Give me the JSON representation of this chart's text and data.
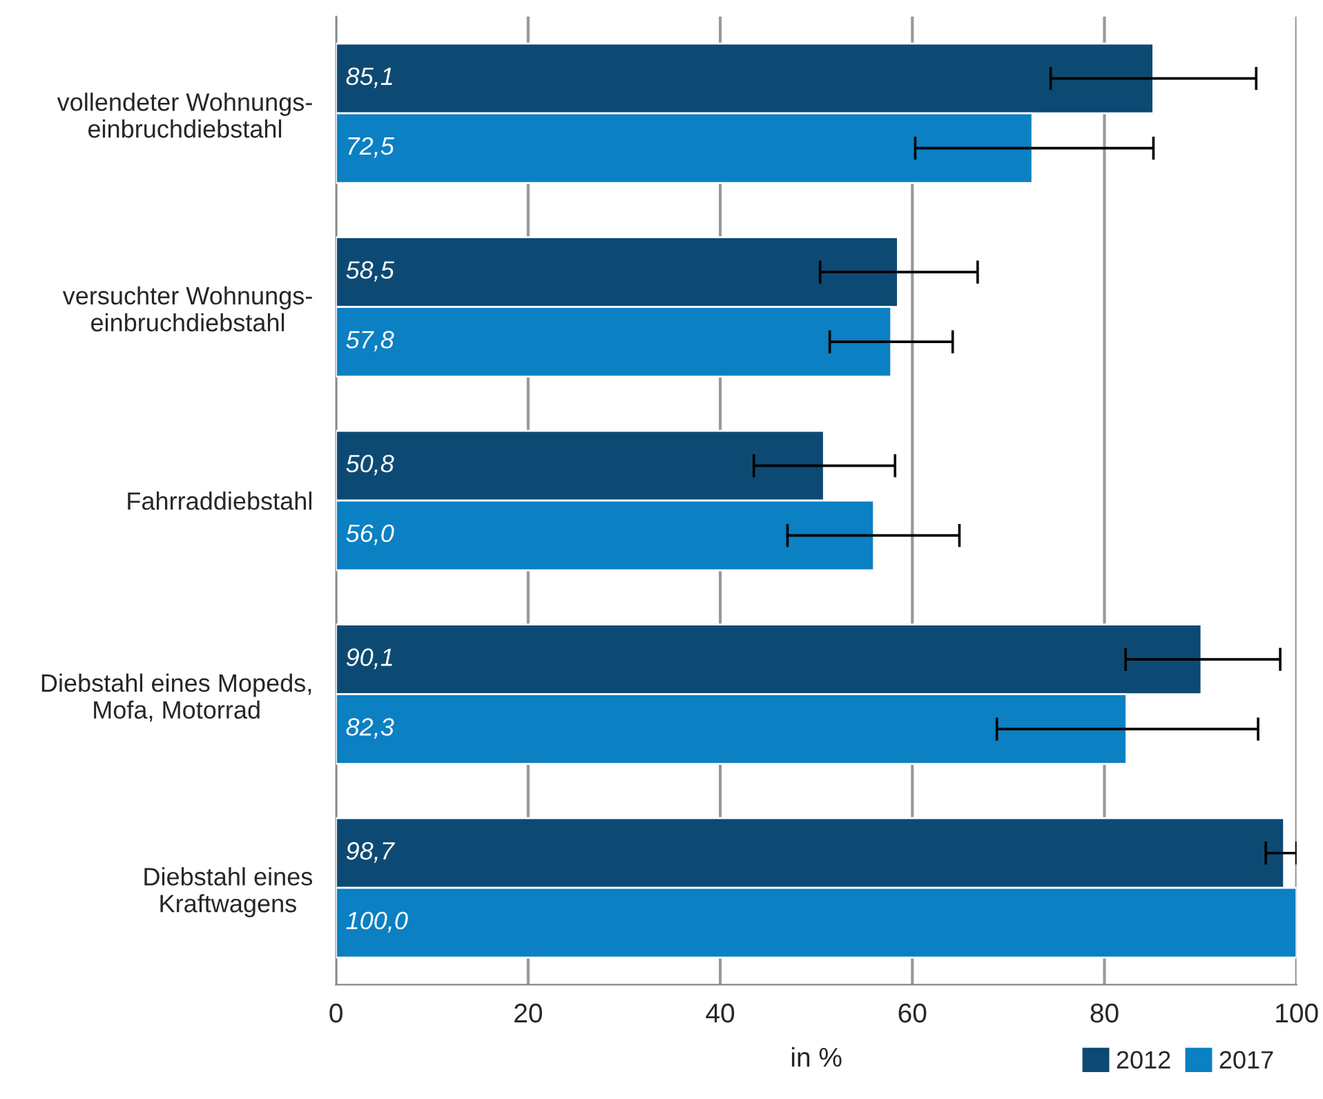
{
  "chart_data": {
    "type": "bar",
    "orientation": "horizontal",
    "categories": [
      "vollendeter Wohnungs-\neinbruchdiebstahl",
      "versuchter Wohnungs-\neinbruchdiebstahl",
      "Fahrraddiebstahl",
      "Diebstahl eines Mopeds,\nMofa, Motorrad",
      "Diebstahl eines\nKraftwagens"
    ],
    "series": [
      {
        "name": "2012",
        "color": "#0d4a73",
        "values": [
          85.1,
          58.5,
          50.8,
          90.1,
          98.7
        ],
        "value_labels": [
          "85,1",
          "58,5",
          "50,8",
          "90,1",
          "98,7"
        ],
        "errors": [
          [
            74.4,
            95.8
          ],
          [
            50.4,
            66.8
          ],
          [
            43.5,
            58.2
          ],
          [
            82.2,
            98.3
          ],
          [
            96.8,
            100
          ]
        ]
      },
      {
        "name": "2017",
        "color": "#0b80c3",
        "values": [
          72.5,
          57.8,
          56.0,
          82.3,
          100.0
        ],
        "value_labels": [
          "72,5",
          "57,8",
          "56,0",
          "82,3",
          "100,0"
        ],
        "errors": [
          [
            60.3,
            85.1
          ],
          [
            51.4,
            64.2
          ],
          [
            47.0,
            64.9
          ],
          [
            68.8,
            96.0
          ],
          null
        ]
      }
    ],
    "xlabel": "in %",
    "xlim": [
      0,
      100
    ],
    "xticks": [
      0,
      20,
      40,
      60,
      80,
      100
    ],
    "grid": "x",
    "legend": "bottom right"
  }
}
